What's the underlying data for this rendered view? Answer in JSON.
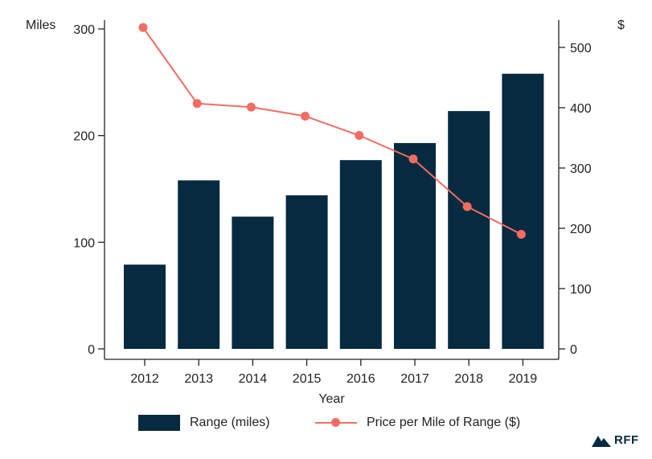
{
  "chart_data": {
    "type": "bar",
    "categories": [
      "2012",
      "2013",
      "2014",
      "2015",
      "2016",
      "2017",
      "2018",
      "2019"
    ],
    "xlabel": "Year",
    "ylabel_left": "Miles",
    "ylabel_right": "$",
    "ylim_left": [
      0,
      300
    ],
    "yticks_left": [
      0,
      100,
      200,
      300
    ],
    "ylim_right": [
      0,
      550
    ],
    "yticks_right": [
      0,
      100,
      200,
      300,
      400,
      500
    ],
    "grid": false,
    "legend_placement": "bottom",
    "series": [
      {
        "name": "Range (miles)",
        "type": "bar",
        "axis": "left",
        "color": "#062a3f",
        "values": [
          79,
          158,
          124,
          144,
          177,
          193,
          223,
          258
        ]
      },
      {
        "name": "Price per Mile of Range ($)",
        "type": "line",
        "axis": "right",
        "color": "#f26c63",
        "values": [
          533,
          407,
          401,
          386,
          354,
          315,
          236,
          190
        ]
      }
    ]
  },
  "logo": {
    "text": "RFF",
    "icon": "mountain-icon"
  }
}
